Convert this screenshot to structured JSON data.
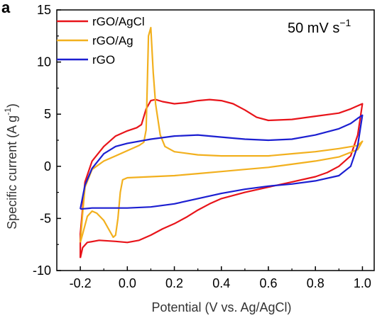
{
  "chart_data": {
    "type": "line",
    "panel_label": "a",
    "xlabel": "Potential (V vs. Ag/AgCl)",
    "ylabel": "Specific current (A g",
    "ylabel_sup": "-1",
    "ylabel_close": ")",
    "annotation": "50 mV s",
    "annotation_sup": "−1",
    "xlim": [
      -0.3,
      1.05
    ],
    "ylim": [
      -10,
      15
    ],
    "xticks": [
      -0.2,
      0.0,
      0.2,
      0.4,
      0.6,
      0.8,
      1.0
    ],
    "xtick_labels": [
      "-0.2",
      "0.0",
      "0.2",
      "0.4",
      "0.6",
      "0.8",
      "1.0"
    ],
    "yticks": [
      -10,
      -5,
      0,
      5,
      10,
      15
    ],
    "ytick_labels": [
      "-10",
      "-5",
      "0",
      "5",
      "10",
      "15"
    ],
    "legend_position": "top-left",
    "series": [
      {
        "name": "rGO/AgCl",
        "color": "#e8141a",
        "points": [
          [
            -0.2,
            -8.8
          ],
          [
            -0.19,
            -7.8
          ],
          [
            -0.17,
            -7.3
          ],
          [
            -0.12,
            -7.1
          ],
          [
            -0.05,
            -7.2
          ],
          [
            0.0,
            -7.3
          ],
          [
            0.05,
            -7.1
          ],
          [
            0.1,
            -6.6
          ],
          [
            0.15,
            -6.0
          ],
          [
            0.2,
            -5.5
          ],
          [
            0.25,
            -4.9
          ],
          [
            0.3,
            -4.2
          ],
          [
            0.35,
            -3.6
          ],
          [
            0.4,
            -3.1
          ],
          [
            0.5,
            -2.5
          ],
          [
            0.6,
            -2.0
          ],
          [
            0.7,
            -1.5
          ],
          [
            0.8,
            -1.0
          ],
          [
            0.85,
            -0.6
          ],
          [
            0.9,
            0.0
          ],
          [
            0.95,
            1.0
          ],
          [
            0.98,
            3.0
          ],
          [
            1.0,
            6.0
          ],
          [
            0.98,
            5.8
          ],
          [
            0.95,
            5.5
          ],
          [
            0.9,
            5.1
          ],
          [
            0.8,
            4.8
          ],
          [
            0.7,
            4.5
          ],
          [
            0.6,
            4.4
          ],
          [
            0.55,
            4.7
          ],
          [
            0.5,
            5.4
          ],
          [
            0.45,
            6.0
          ],
          [
            0.4,
            6.3
          ],
          [
            0.35,
            6.4
          ],
          [
            0.3,
            6.3
          ],
          [
            0.25,
            6.1
          ],
          [
            0.2,
            6.0
          ],
          [
            0.15,
            6.2
          ],
          [
            0.12,
            6.4
          ],
          [
            0.1,
            6.3
          ],
          [
            0.08,
            5.5
          ],
          [
            0.06,
            4.0
          ],
          [
            0.04,
            3.7
          ],
          [
            0.0,
            3.4
          ],
          [
            -0.05,
            2.9
          ],
          [
            -0.1,
            1.9
          ],
          [
            -0.15,
            0.5
          ],
          [
            -0.18,
            -1.5
          ],
          [
            -0.19,
            -4.0
          ],
          [
            -0.2,
            -6.5
          ],
          [
            -0.2,
            -8.8
          ]
        ]
      },
      {
        "name": "rGO/Ag",
        "color": "#f2b01e",
        "points": [
          [
            -0.2,
            -7.3
          ],
          [
            -0.19,
            -6.5
          ],
          [
            -0.17,
            -4.8
          ],
          [
            -0.15,
            -4.3
          ],
          [
            -0.13,
            -4.5
          ],
          [
            -0.1,
            -5.2
          ],
          [
            -0.08,
            -6.0
          ],
          [
            -0.06,
            -6.8
          ],
          [
            -0.05,
            -6.6
          ],
          [
            -0.04,
            -5.0
          ],
          [
            -0.03,
            -2.5
          ],
          [
            -0.02,
            -1.3
          ],
          [
            0.0,
            -1.1
          ],
          [
            0.1,
            -1.0
          ],
          [
            0.2,
            -0.9
          ],
          [
            0.3,
            -0.7
          ],
          [
            0.4,
            -0.5
          ],
          [
            0.5,
            -0.3
          ],
          [
            0.6,
            -0.1
          ],
          [
            0.7,
            0.2
          ],
          [
            0.8,
            0.5
          ],
          [
            0.9,
            0.9
          ],
          [
            0.98,
            1.6
          ],
          [
            1.0,
            2.4
          ],
          [
            0.98,
            2.0
          ],
          [
            0.9,
            1.7
          ],
          [
            0.8,
            1.4
          ],
          [
            0.7,
            1.2
          ],
          [
            0.6,
            1.0
          ],
          [
            0.5,
            1.0
          ],
          [
            0.4,
            1.0
          ],
          [
            0.3,
            1.1
          ],
          [
            0.2,
            1.4
          ],
          [
            0.16,
            1.9
          ],
          [
            0.14,
            3.0
          ],
          [
            0.12,
            6.0
          ],
          [
            0.11,
            9.0
          ],
          [
            0.1,
            13.3
          ],
          [
            0.09,
            12.5
          ],
          [
            0.085,
            8.0
          ],
          [
            0.08,
            3.5
          ],
          [
            0.07,
            2.3
          ],
          [
            0.05,
            2.0
          ],
          [
            0.0,
            1.5
          ],
          [
            -0.05,
            1.0
          ],
          [
            -0.1,
            0.5
          ],
          [
            -0.15,
            -0.3
          ],
          [
            -0.18,
            -2.0
          ],
          [
            -0.19,
            -4.5
          ],
          [
            -0.2,
            -7.3
          ]
        ]
      },
      {
        "name": "rGO",
        "color": "#1c1fd1",
        "points": [
          [
            -0.2,
            -4.1
          ],
          [
            -0.15,
            -4.0
          ],
          [
            -0.1,
            -4.0
          ],
          [
            0.0,
            -4.0
          ],
          [
            0.1,
            -3.9
          ],
          [
            0.2,
            -3.6
          ],
          [
            0.3,
            -3.1
          ],
          [
            0.4,
            -2.6
          ],
          [
            0.5,
            -2.2
          ],
          [
            0.6,
            -1.9
          ],
          [
            0.7,
            -1.7
          ],
          [
            0.8,
            -1.4
          ],
          [
            0.9,
            -0.9
          ],
          [
            0.95,
            0.0
          ],
          [
            0.98,
            2.0
          ],
          [
            1.0,
            4.9
          ],
          [
            0.98,
            4.6
          ],
          [
            0.95,
            4.1
          ],
          [
            0.9,
            3.6
          ],
          [
            0.8,
            3.0
          ],
          [
            0.7,
            2.6
          ],
          [
            0.6,
            2.5
          ],
          [
            0.5,
            2.6
          ],
          [
            0.4,
            2.8
          ],
          [
            0.3,
            3.0
          ],
          [
            0.2,
            2.9
          ],
          [
            0.1,
            2.6
          ],
          [
            0.0,
            2.2
          ],
          [
            -0.05,
            1.9
          ],
          [
            -0.1,
            1.2
          ],
          [
            -0.15,
            -0.2
          ],
          [
            -0.18,
            -1.8
          ],
          [
            -0.2,
            -4.1
          ]
        ]
      }
    ]
  }
}
